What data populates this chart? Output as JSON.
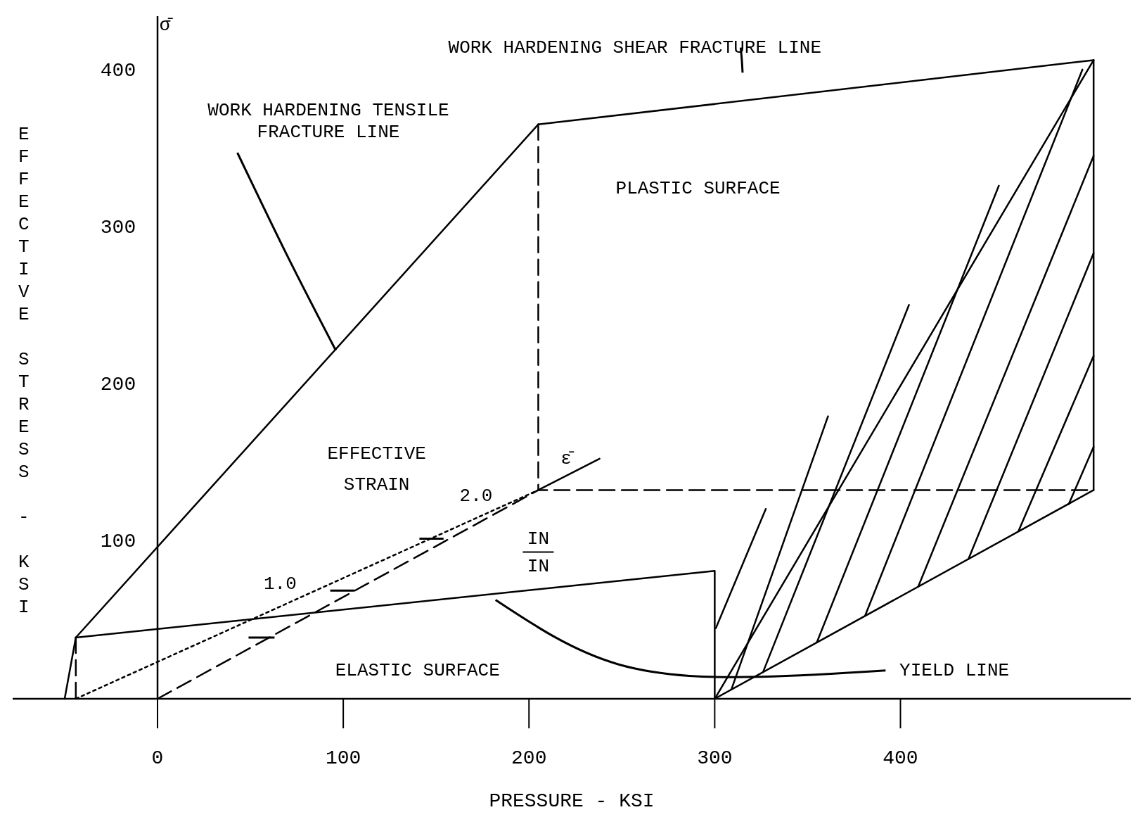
{
  "chart_data": {
    "type": "line",
    "xlabel": "PRESSURE - KSI",
    "ylabel": "EFFECTIVE STRESS - KSI",
    "xlim": [
      -78,
      524
    ],
    "ylim": [
      0,
      435
    ],
    "xticks": [
      0,
      100,
      200,
      300,
      400
    ],
    "yticks": [
      100,
      200,
      300,
      400
    ],
    "series": [
      {
        "color": "#000000",
        "line_style": "solid",
        "x": [
          -50,
          -44
        ],
        "values": [
          0,
          39
        ]
      },
      {
        "color": "#000000",
        "line_style": "dashed",
        "x": [
          -44,
          -44
        ],
        "values": [
          39,
          0
        ]
      },
      {
        "color": "#000000",
        "line_style": "solid",
        "x": [
          -44,
          205
        ],
        "values": [
          39,
          366
        ]
      },
      {
        "color": "#000000",
        "line_style": "solid",
        "x": [
          205,
          504
        ],
        "values": [
          366,
          407
        ]
      },
      {
        "color": "#000000",
        "line_style": "solid",
        "x": [
          504,
          504
        ],
        "values": [
          407,
          133
        ]
      },
      {
        "color": "#000000",
        "line_style": "dashed",
        "x": [
          205,
          205
        ],
        "values": [
          366,
          133
        ]
      },
      {
        "color": "#000000",
        "line_style": "dashed",
        "x": [
          0,
          205,
          504
        ],
        "values": [
          0,
          133,
          133
        ]
      },
      {
        "color": "#000000",
        "line_style": "solid",
        "x": [
          -44,
          300,
          300,
          504
        ],
        "values": [
          39,
          81.5,
          0,
          133
        ]
      },
      {
        "color": "#000000",
        "line_style": "solid",
        "x": [
          300,
          504
        ],
        "values": [
          0,
          407
        ]
      },
      {
        "color": "#000000",
        "line_style": "dotted",
        "x": [
          -44,
          205
        ],
        "values": [
          0,
          133
        ]
      },
      {
        "color": "#000000",
        "line_style": "solid",
        "x": [
          205,
          238
        ],
        "values": [
          133,
          153
        ]
      },
      {
        "color": "#000000",
        "line_style": "solid",
        "x": [
          300.6,
          327.5
        ],
        "values": [
          45,
          121
        ]
      },
      {
        "color": "#000000",
        "line_style": "solid",
        "x": [
          309,
          361
        ],
        "values": [
          6,
          180
        ]
      },
      {
        "color": "#000000",
        "line_style": "solid",
        "x": [
          326,
          404.6
        ],
        "values": [
          17,
          251
        ]
      },
      {
        "color": "#000000",
        "line_style": "solid",
        "x": [
          355,
          453
        ],
        "values": [
          36,
          327
        ]
      },
      {
        "color": "#000000",
        "line_style": "solid",
        "x": [
          381,
          498
        ],
        "values": [
          53,
          401
        ]
      },
      {
        "color": "#000000",
        "line_style": "solid",
        "x": [
          409.6,
          504
        ],
        "values": [
          71.5,
          346
        ]
      },
      {
        "color": "#000000",
        "line_style": "solid",
        "x": [
          436.6,
          504
        ],
        "values": [
          89,
          284
        ]
      },
      {
        "color": "#000000",
        "line_style": "solid",
        "x": [
          463.6,
          504
        ],
        "values": [
          107,
          218.5
        ]
      },
      {
        "color": "#000000",
        "line_style": "solid",
        "x": [
          490.6,
          504
        ],
        "values": [
          124,
          160.6
        ]
      }
    ],
    "annotations": [
      "WORK HARDENING SHEAR FRACTURE LINE",
      {
        "text": "WORK HARDENING TENSILE\nFRACTURE LINE",
        "x": 96,
        "y": 222
      },
      "PLASTIC SURFACE",
      "EFFECTIVE\nSTRAIN",
      "2.0",
      "1.0",
      "ε̄",
      "IN\nIN",
      "ELASTIC SURFACE",
      "YIELD LINE",
      "σ̄"
    ]
  }
}
